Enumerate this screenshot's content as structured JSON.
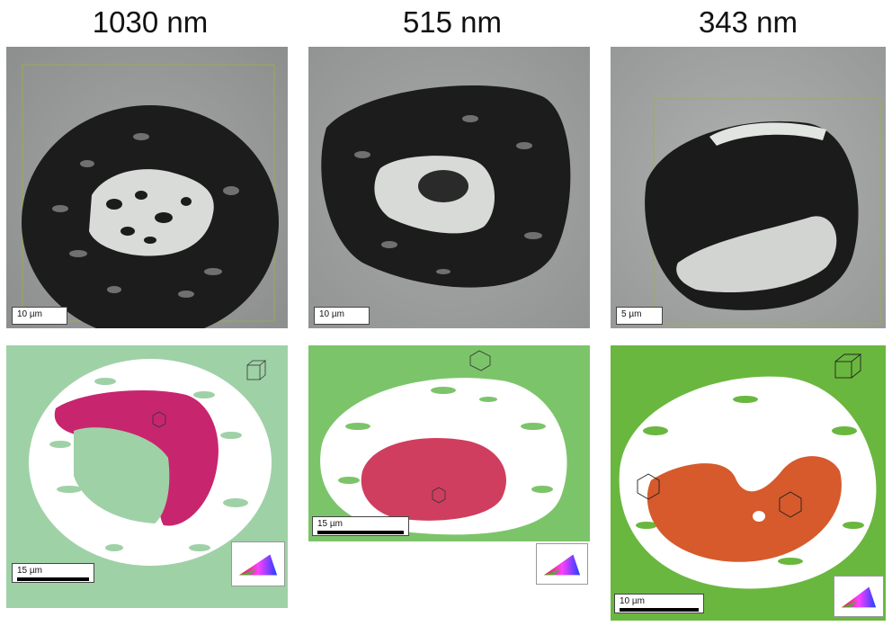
{
  "columns": [
    {
      "title": "1030 nm",
      "sem_scale": "10 µm",
      "ebsd_scale": "15 µm"
    },
    {
      "title": "515 nm",
      "sem_scale": "10 µm",
      "ebsd_scale": "15 µm"
    },
    {
      "title": "343 nm",
      "sem_scale": "5 µm",
      "ebsd_scale": "10 µm"
    }
  ],
  "colors": {
    "sem_background": "#9a9c9b",
    "crater_dark": "#1c1c1c",
    "ebsd_green_1030": "#9fd1a6",
    "ebsd_green_515": "#7cc46a",
    "ebsd_green_343": "#6ab73f",
    "grain_magenta": "#c8256f",
    "grain_pink": "#cf3e5e",
    "grain_orange": "#d65a2c"
  },
  "icons": [
    "unit-cell-icon",
    "ipf-color-key-icon"
  ]
}
